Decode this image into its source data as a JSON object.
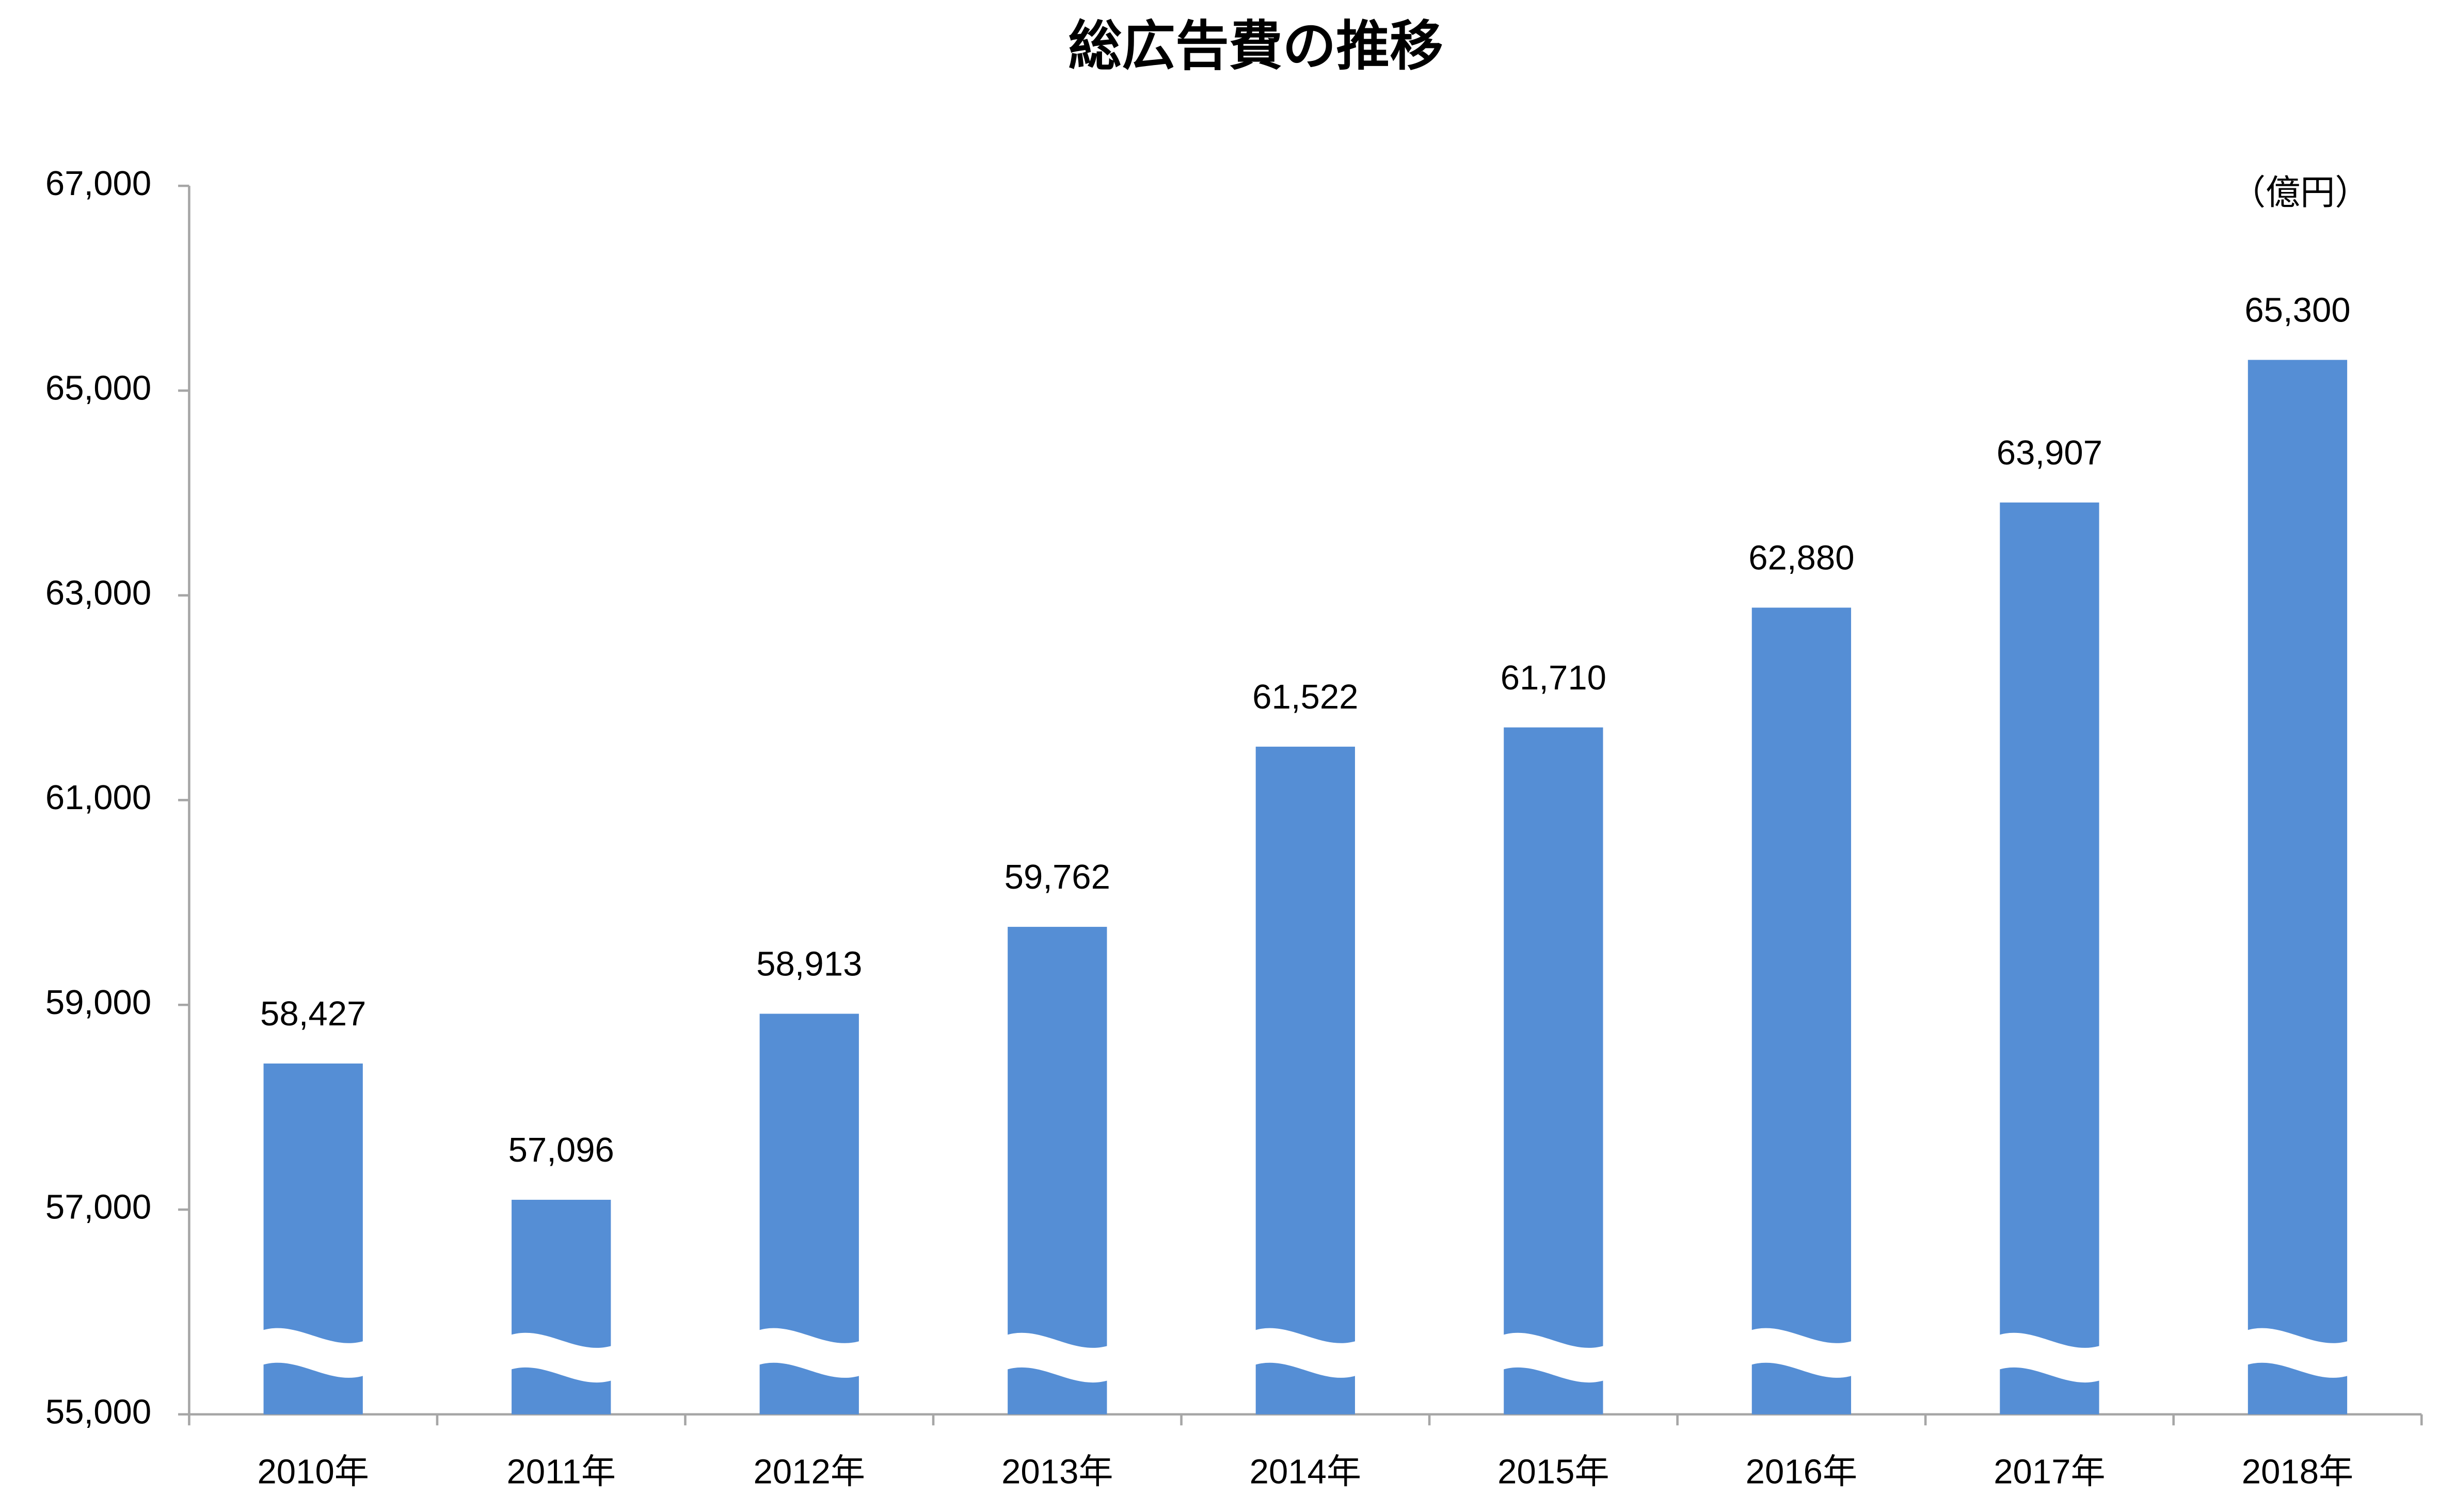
{
  "chart_data": {
    "type": "bar",
    "title": "総広告費の推移",
    "unit_label": "（億円）",
    "categories": [
      "2010年",
      "2011年",
      "2012年",
      "2013年",
      "2014年",
      "2015年",
      "2016年",
      "2017年",
      "2018年"
    ],
    "values": [
      58427,
      57096,
      58913,
      59762,
      61522,
      61710,
      62880,
      63907,
      65300
    ],
    "value_labels": [
      "58,427",
      "57,096",
      "58,913",
      "59,762",
      "61,522",
      "61,710",
      "62,880",
      "63,907",
      "65,300"
    ],
    "color": "#558ed5",
    "ylim": [
      55000,
      67000
    ],
    "yticks": [
      {
        "value": 55000,
        "label": "55,000"
      },
      {
        "value": 57000,
        "label": "57,000"
      },
      {
        "value": 59000,
        "label": "59,000"
      },
      {
        "value": 61000,
        "label": "61,000"
      },
      {
        "value": 63000,
        "label": "63,000"
      },
      {
        "value": 65000,
        "label": "65,000"
      },
      {
        "value": 67000,
        "label": "67,000"
      }
    ],
    "axis_break": true
  }
}
